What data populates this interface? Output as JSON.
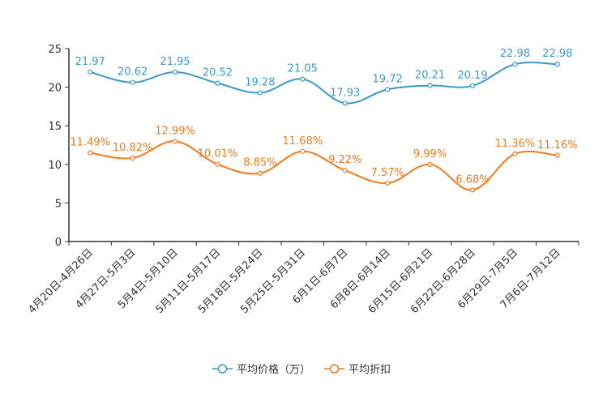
{
  "chart_data": {
    "type": "line",
    "title": "",
    "xlabel": "",
    "ylabel": "",
    "ylim": [
      0,
      25
    ],
    "yticks": [
      "0",
      "5",
      "10",
      "15",
      "20",
      "25"
    ],
    "categories": [
      "4月20日-4月26日",
      "4月27日-5月3日",
      "5月4日-5月10日",
      "5月11日-5月17日",
      "5月18日-5月24日",
      "5月25日-5月31日",
      "6月1日-6月7日",
      "6月8日-6月14日",
      "6月15日-6月21日",
      "6月22日-6月28日",
      "6月29日-7月5日",
      "7月6日-7月12日"
    ],
    "series": [
      {
        "name": "平均价格（万）",
        "color": "#3a9bcb",
        "values": [
          21.97,
          20.62,
          21.95,
          20.52,
          19.28,
          21.05,
          17.93,
          19.72,
          20.21,
          20.19,
          22.98,
          22.98
        ],
        "labels": [
          "21.97",
          "20.62",
          "21.95",
          "20.52",
          "19.28",
          "21.05",
          "17.93",
          "19.72",
          "20.21",
          "20.19",
          "22.98",
          "22.98"
        ]
      },
      {
        "name": "平均折扣",
        "color": "#f07a1f",
        "values": [
          11.49,
          10.82,
          12.99,
          10.01,
          8.85,
          11.68,
          9.22,
          7.57,
          9.99,
          6.68,
          11.36,
          11.16
        ],
        "labels": [
          "11.49%",
          "10.82%",
          "12.99%",
          "10.01%",
          "8.85%",
          "11.68%",
          "9.22%",
          "7.57%",
          "9.99%",
          "6.68%",
          "11.36%",
          "11.16%"
        ]
      }
    ],
    "legend": {
      "position": "bottom-center"
    },
    "grid": false
  }
}
